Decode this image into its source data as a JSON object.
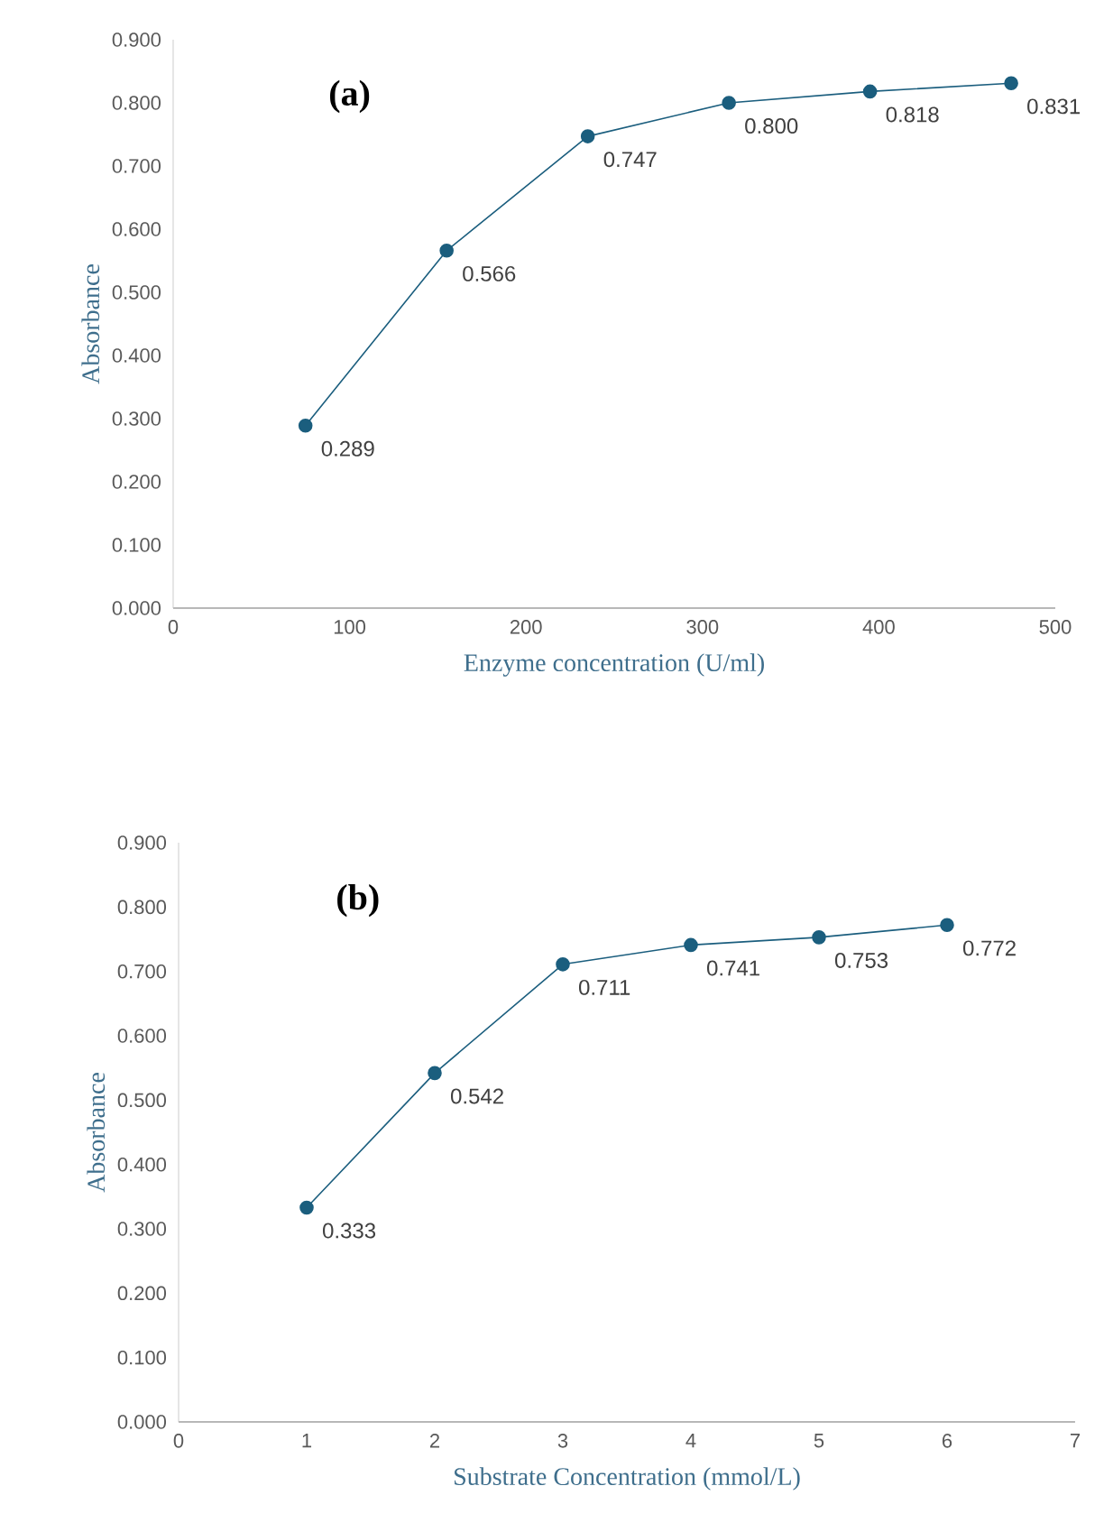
{
  "chart_data": [
    {
      "type": "line",
      "annotations": [
        "(a)"
      ],
      "xlabel": "Enzyme concentration (U/ml)",
      "ylabel": "Absorbance",
      "x": [
        75,
        155,
        235,
        315,
        395,
        475
      ],
      "series": [
        {
          "color": "#1b5e7e",
          "values": [
            0.289,
            0.566,
            0.747,
            0.8,
            0.818,
            0.831
          ],
          "value_labels": [
            "0.289",
            "0.566",
            "0.747",
            "0.800",
            "0.818",
            "0.831"
          ]
        }
      ],
      "xlim": [
        0,
        500
      ],
      "xticks": [
        0,
        100,
        200,
        300,
        400,
        500
      ],
      "ylim": [
        0,
        0.9
      ],
      "yticks": [
        {
          "value": 0,
          "label": "0.000"
        },
        {
          "value": 0.1,
          "label": "0.100"
        },
        {
          "value": 0.2,
          "label": "0.200"
        },
        {
          "value": 0.3,
          "label": "0.300"
        },
        {
          "value": 0.4,
          "label": "0.400"
        },
        {
          "value": 0.5,
          "label": "0.500"
        },
        {
          "value": 0.6,
          "label": "0.600"
        },
        {
          "value": 0.7,
          "label": "0.700"
        },
        {
          "value": 0.8,
          "label": "0.800"
        },
        {
          "value": 0.9,
          "label": "0.900"
        }
      ],
      "marker": "circle",
      "line_style": "solid",
      "grid": false
    },
    {
      "type": "line",
      "annotations": [
        "(b)"
      ],
      "xlabel": "Substrate Concentration (mmol/L)",
      "ylabel": "Absorbance",
      "x": [
        1,
        2,
        3,
        4,
        5,
        6
      ],
      "series": [
        {
          "color": "#1b5e7e",
          "values": [
            0.333,
            0.542,
            0.711,
            0.741,
            0.753,
            0.772
          ],
          "value_labels": [
            "0.333",
            "0.542",
            "0.711",
            "0.741",
            "0.753",
            "0.772"
          ]
        }
      ],
      "xlim": [
        0,
        7
      ],
      "xticks": [
        0,
        1,
        2,
        3,
        4,
        5,
        6,
        7
      ],
      "ylim": [
        0,
        0.9
      ],
      "yticks": [
        {
          "value": 0,
          "label": "0.000"
        },
        {
          "value": 0.1,
          "label": "0.100"
        },
        {
          "value": 0.2,
          "label": "0.200"
        },
        {
          "value": 0.3,
          "label": "0.300"
        },
        {
          "value": 0.4,
          "label": "0.400"
        },
        {
          "value": 0.5,
          "label": "0.500"
        },
        {
          "value": 0.6,
          "label": "0.600"
        },
        {
          "value": 0.7,
          "label": "0.700"
        },
        {
          "value": 0.8,
          "label": "0.800"
        },
        {
          "value": 0.9,
          "label": "0.900"
        }
      ],
      "marker": "circle",
      "line_style": "solid",
      "grid": false
    }
  ]
}
